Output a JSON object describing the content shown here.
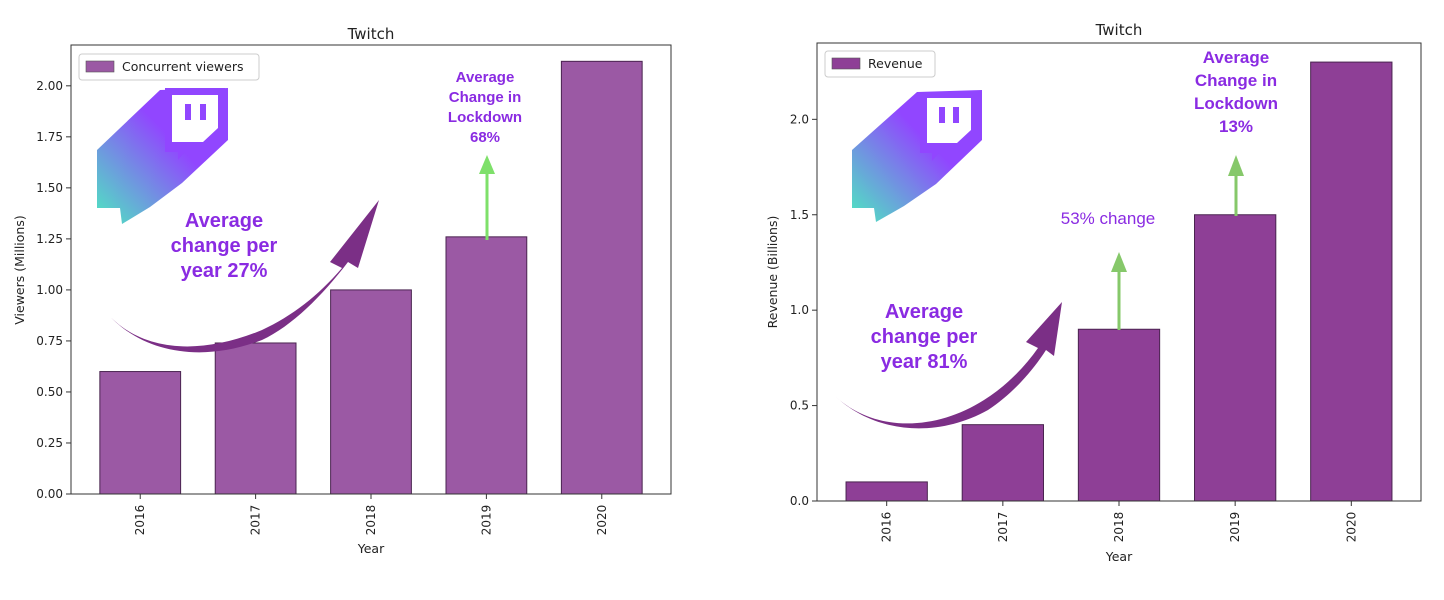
{
  "chart_data": [
    {
      "type": "bar",
      "title": "Twitch",
      "categories": [
        "2016",
        "2017",
        "2018",
        "2019",
        "2020"
      ],
      "series": [
        {
          "name": "Concurrent viewers",
          "values": [
            0.6,
            0.74,
            1.0,
            1.26,
            2.12
          ]
        }
      ],
      "xlabel": "Year",
      "ylabel": "Viewers (Millions)",
      "ylim": [
        0,
        2.2
      ],
      "yticks": [
        "0.00",
        "0.25",
        "0.50",
        "0.75",
        "1.00",
        "1.25",
        "1.50",
        "1.75",
        "2.00"
      ],
      "ytick_values": [
        0,
        0.25,
        0.5,
        0.75,
        1.0,
        1.25,
        1.5,
        1.75,
        2.0
      ],
      "legend_position": "top-left",
      "grid": false,
      "bar_color": "#9b59a4",
      "arrow_color": "#7b2f86",
      "green_arrow_color": "#7ee06a",
      "annotations": {
        "trend_lines": [
          "Average",
          "change per",
          "year 27%"
        ],
        "lockdown_lines": [
          "Average",
          "Change in",
          "Lockdown",
          "68%"
        ]
      }
    },
    {
      "type": "bar",
      "title": "Twitch",
      "categories": [
        "2016",
        "2017",
        "2018",
        "2019",
        "2020"
      ],
      "series": [
        {
          "name": "Revenue",
          "values": [
            0.1,
            0.4,
            0.9,
            1.5,
            2.3
          ]
        }
      ],
      "xlabel": "Year",
      "ylabel": "Revenue (Billions)",
      "ylim": [
        0,
        2.4
      ],
      "yticks": [
        "0.0",
        "0.5",
        "1.0",
        "1.5",
        "2.0"
      ],
      "ytick_values": [
        0,
        0.5,
        1.0,
        1.5,
        2.0
      ],
      "legend_position": "top-left",
      "grid": false,
      "bar_color": "#8e3f96",
      "arrow_color": "#7b2f86",
      "green_arrow_color": "#86c86a",
      "annotations": {
        "trend_lines": [
          "Average",
          "change per",
          "year 81%"
        ],
        "lockdown_lines": [
          "Average",
          "Change in",
          "Lockdown",
          "13%"
        ],
        "change_label": "53% change"
      }
    }
  ],
  "logo": {
    "name": "twitch-logo",
    "purple": "#9146ff",
    "teal": "#4de8c0"
  }
}
